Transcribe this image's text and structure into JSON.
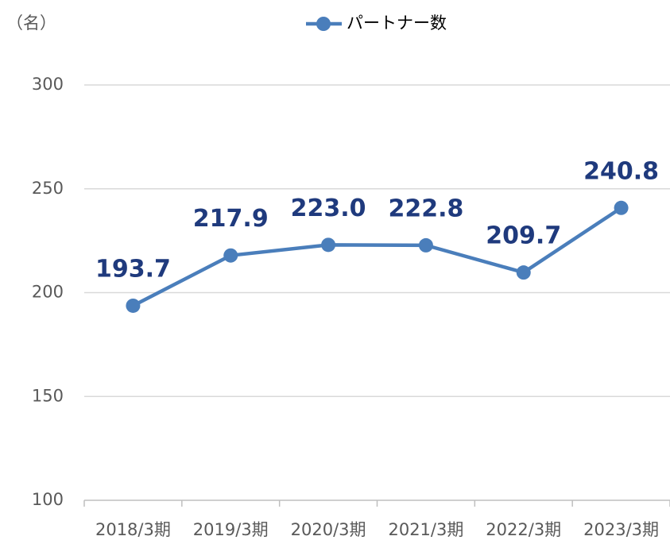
{
  "chart_data": {
    "type": "line",
    "y_label": "（名）",
    "categories": [
      "2018/3期",
      "2019/3期",
      "2020/3期",
      "2021/3期",
      "2022/3期",
      "2023/3期"
    ],
    "series": [
      {
        "name": "パートナー数",
        "color": "#4a7ebb",
        "values": [
          193.7,
          217.9,
          223.0,
          222.8,
          209.7,
          240.8
        ],
        "value_labels": [
          "193.7",
          "217.9",
          "223.0",
          "222.8",
          "209.7",
          "240.8"
        ]
      }
    ],
    "ylim": [
      100,
      300
    ],
    "yticks": [
      100,
      150,
      200,
      250,
      300
    ],
    "grid": true,
    "legend": "top"
  }
}
